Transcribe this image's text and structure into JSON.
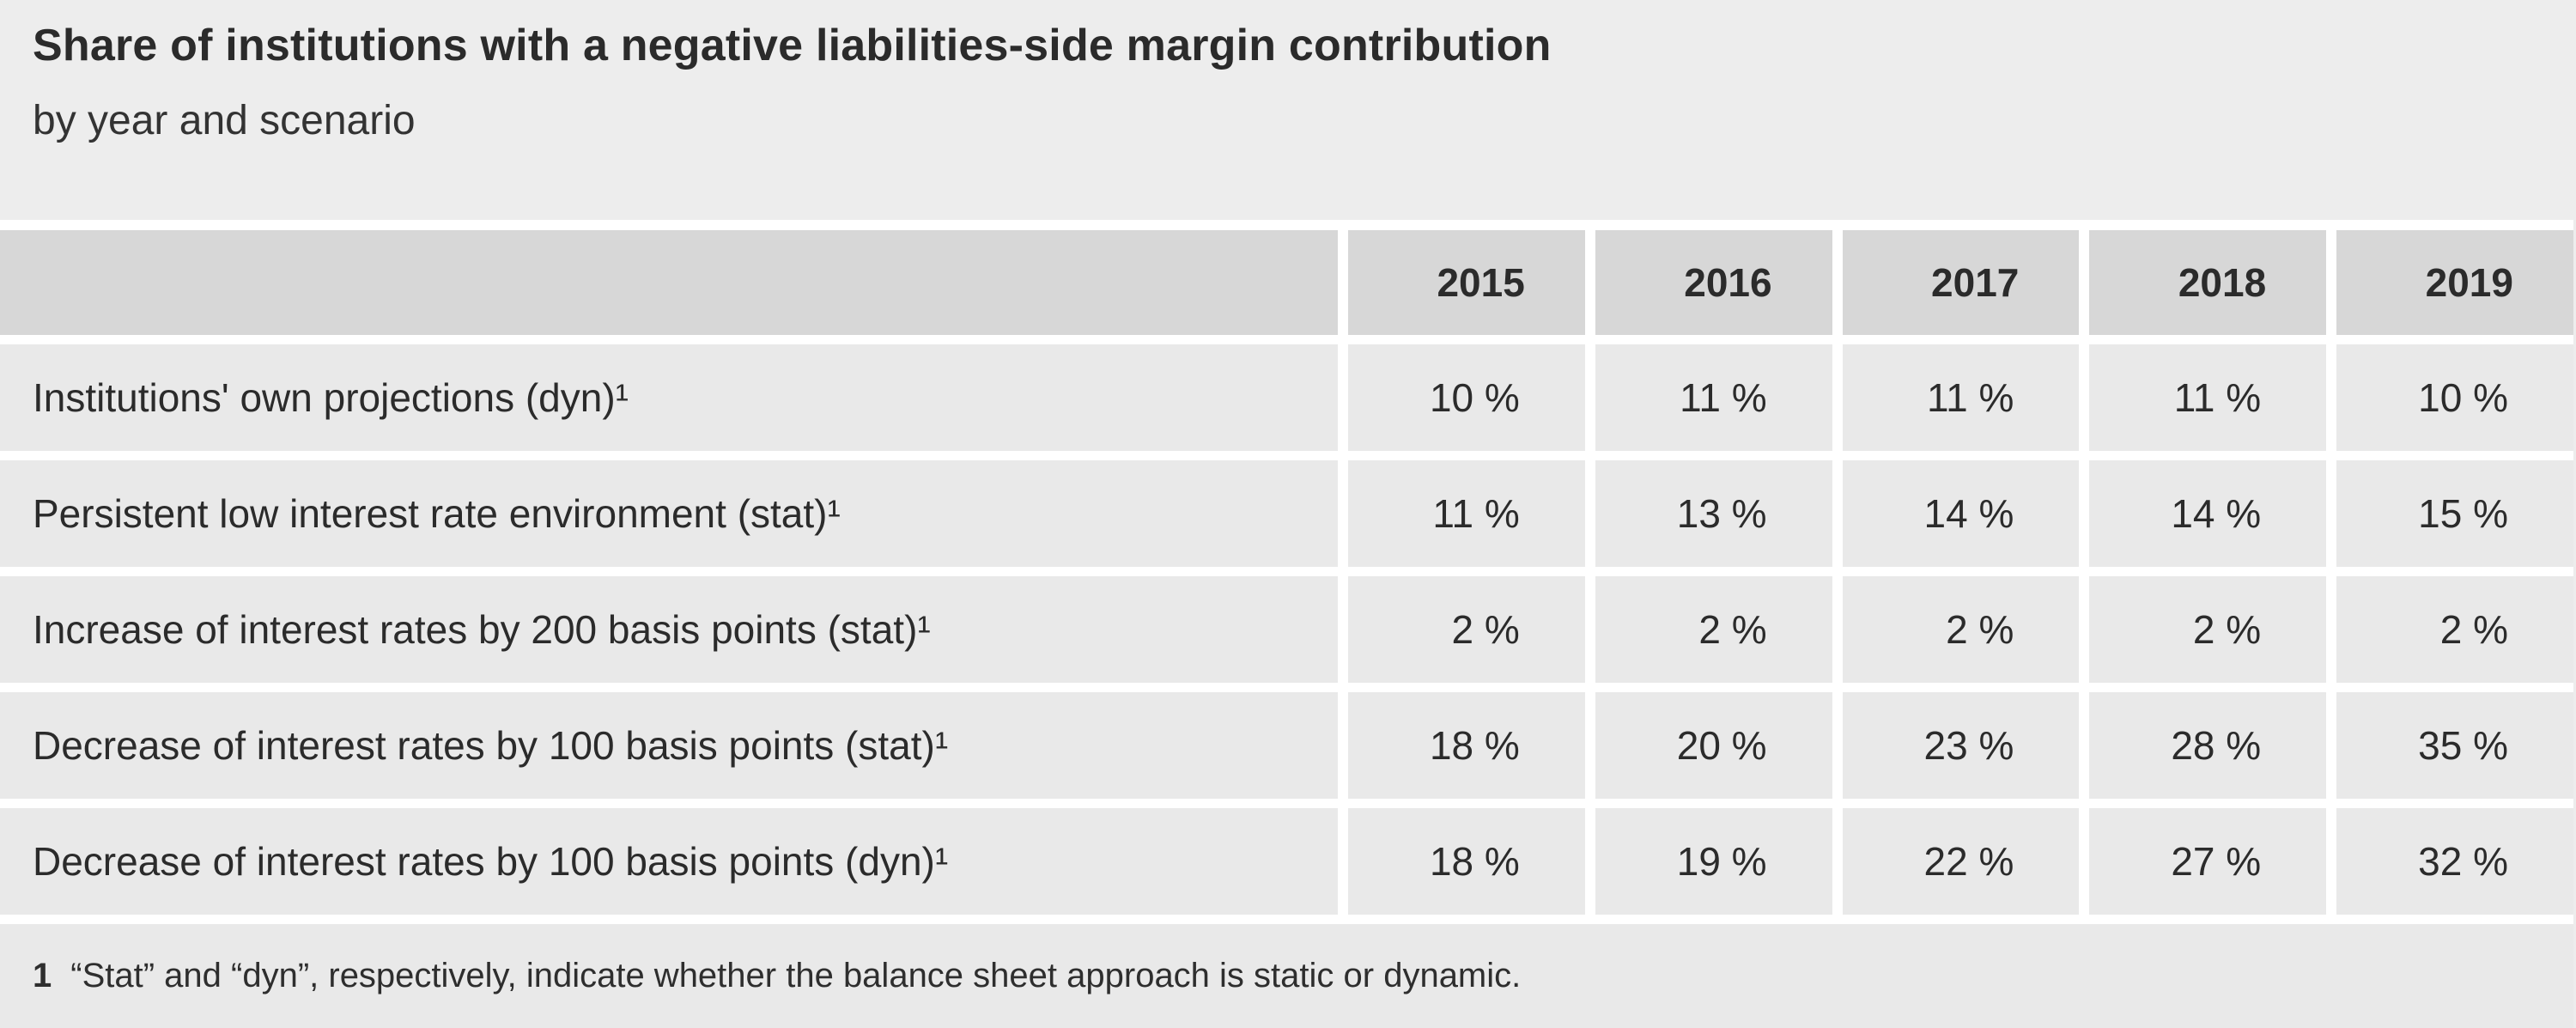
{
  "header": {
    "title": "Share of institutions with a negative liabilities-side margin contribution",
    "subtitle": "by year and scenario"
  },
  "table": {
    "year_columns": [
      "2015",
      "2016",
      "2017",
      "2018",
      "2019"
    ],
    "rows": [
      {
        "label": "Institutions' own projections (dyn)¹",
        "values": [
          "10 %",
          "11 %",
          "11 %",
          "11 %",
          "10 %"
        ]
      },
      {
        "label": "Persistent low interest rate environment (stat)¹",
        "values": [
          "11 %",
          "13 %",
          "14 %",
          "14 %",
          "15 %"
        ]
      },
      {
        "label": "Increase of interest rates by 200 basis points (stat)¹",
        "values": [
          "2 %",
          "2 %",
          "2 %",
          "2 %",
          "2 %"
        ]
      },
      {
        "label": "Decrease of interest rates by 100 basis points (stat)¹",
        "values": [
          "18 %",
          "20 %",
          "23 %",
          "28 %",
          "35 %"
        ]
      },
      {
        "label": "Decrease of interest rates by 100 basis points (dyn)¹",
        "values": [
          "18 %",
          "19 %",
          "22 %",
          "27 %",
          "32 %"
        ]
      }
    ],
    "footnote": {
      "marker": "1",
      "text": "“Stat” and “dyn”, respectively, indicate whether the balance sheet approach is static or dynamic."
    }
  },
  "chart_data": {
    "type": "table",
    "title": "Share of institutions with a negative liabilities-side margin contribution",
    "subtitle": "by year and scenario",
    "categories": [
      "2015",
      "2016",
      "2017",
      "2018",
      "2019"
    ],
    "unit": "%",
    "series": [
      {
        "name": "Institutions' own projections (dyn)",
        "values": [
          10,
          11,
          11,
          11,
          10
        ]
      },
      {
        "name": "Persistent low interest rate environment (stat)",
        "values": [
          11,
          13,
          14,
          14,
          15
        ]
      },
      {
        "name": "Increase of interest rates by 200 basis points (stat)",
        "values": [
          2,
          2,
          2,
          2,
          2
        ]
      },
      {
        "name": "Decrease of interest rates by 100 basis points (stat)",
        "values": [
          18,
          20,
          23,
          28,
          35
        ]
      },
      {
        "name": "Decrease of interest rates by 100 basis points (dyn)",
        "values": [
          18,
          19,
          22,
          27,
          32
        ]
      }
    ],
    "footnote": "1 “Stat” and “dyn”, respectively, indicate whether the balance sheet approach is static or dynamic."
  },
  "colors": {
    "page_background": "#ededed",
    "header_row_background": "#d7d7d7",
    "data_row_background": "#e9e9e9",
    "separator": "#ffffff",
    "text": "#2b2b2b"
  }
}
